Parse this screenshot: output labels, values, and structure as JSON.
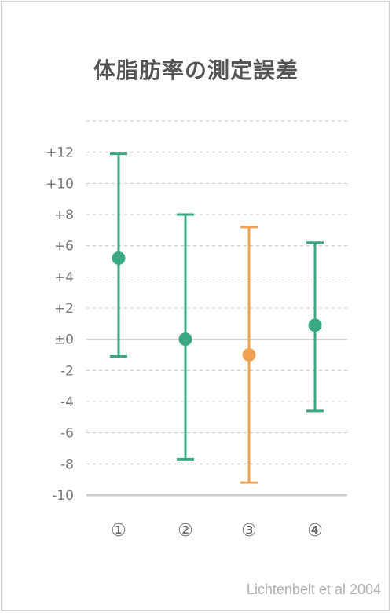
{
  "chart_data": {
    "type": "errorbar",
    "title": "体脂肪率の測定誤差",
    "xlabel": "",
    "ylabel": "",
    "categories": [
      "①",
      "②",
      "③",
      "④"
    ],
    "series": [
      {
        "points": [
          {
            "category": "①",
            "mean": 5.2,
            "low": -1.1,
            "high": 11.9,
            "color": "#3aa883"
          },
          {
            "category": "②",
            "mean": 0.0,
            "low": -7.7,
            "high": 8.0,
            "color": "#3aa883"
          },
          {
            "category": "③",
            "mean": -1.0,
            "low": -9.2,
            "high": 7.2,
            "color": "#f0a055"
          },
          {
            "category": "④",
            "mean": 0.9,
            "low": -4.6,
            "high": 6.2,
            "color": "#3aa883"
          }
        ]
      }
    ],
    "ylim": [
      -10,
      14
    ],
    "yticks": [
      {
        "value": 12,
        "label": "+12"
      },
      {
        "value": 10,
        "label": "+10"
      },
      {
        "value": 8,
        "label": "+8"
      },
      {
        "value": 6,
        "label": "+6"
      },
      {
        "value": 4,
        "label": "+4"
      },
      {
        "value": 2,
        "label": "+2"
      },
      {
        "value": 0,
        "label": "±0"
      },
      {
        "value": -2,
        "label": "-2"
      },
      {
        "value": -4,
        "label": "-4"
      },
      {
        "value": -6,
        "label": "-6"
      },
      {
        "value": -8,
        "label": "-8"
      },
      {
        "value": -10,
        "label": "-10"
      }
    ],
    "grid": true,
    "source": "Lichtenbelt et al 2004"
  }
}
